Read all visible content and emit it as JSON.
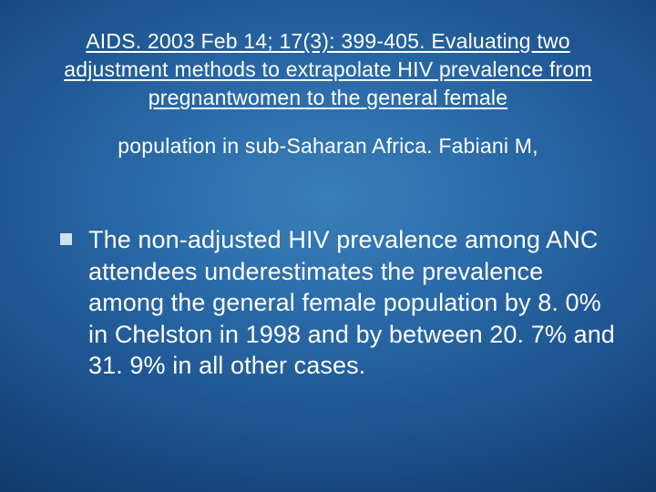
{
  "slide": {
    "background": {
      "type": "radial-gradient",
      "center_color": "#3a7fb8",
      "outer_color": "#020a1a"
    },
    "title": {
      "line1": "AIDS. 2003 Feb 14; 17(3): 399-405.  Evaluating two adjustment methods to extrapolate HIV prevalence from pregnantwomen to the general female",
      "line2": "population in sub-Saharan Africa. Fabiani M,",
      "font_size": 23,
      "color": "#ffffff",
      "underline": true
    },
    "body": {
      "bullet_style": "square",
      "bullet_color": "#cfe0ef",
      "bullet_size": 13,
      "text": "The non-adjusted HIV prevalence among ANC attendees underestimates the prevalence among the general female population by 8. 0% in Chelston in 1998 and by between 20. 7% and 31. 9% in all other cases.",
      "font_size": 27,
      "color": "#ffffff"
    }
  }
}
